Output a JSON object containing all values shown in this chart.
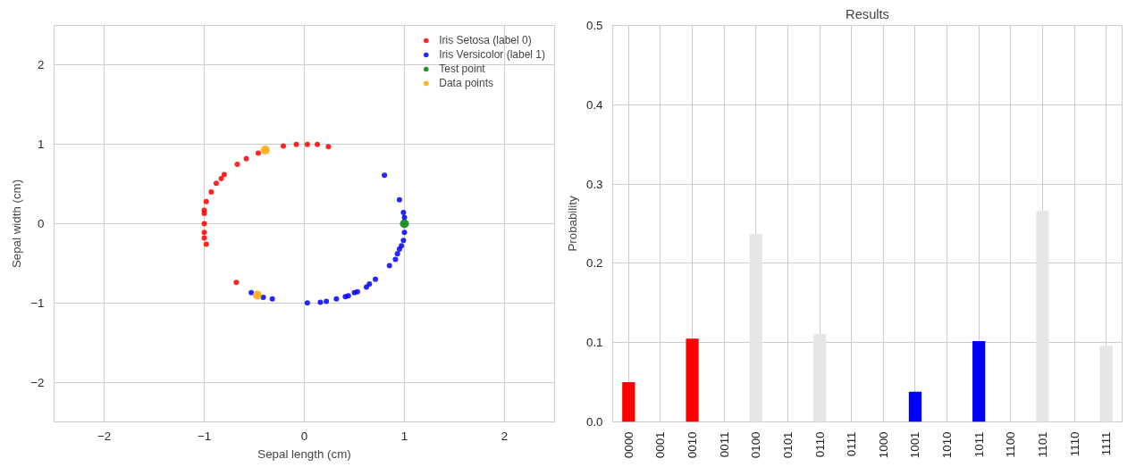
{
  "chart_data": [
    {
      "type": "scatter",
      "xlabel": "Sepal length (cm)",
      "ylabel": "Sepal width (cm)",
      "xlim": [
        -2.5,
        2.5
      ],
      "ylim": [
        -2.5,
        2.5
      ],
      "xticks": [
        -2,
        -1,
        0,
        1,
        2
      ],
      "yticks": [
        -2,
        -1,
        0,
        1,
        2
      ],
      "grid": true,
      "legend": "top right",
      "marker": "circle",
      "series": [
        {
          "name": "Iris Setosa (label 0)",
          "color": "#ff0000",
          "x": [
            -0.46,
            -0.58,
            -0.67,
            -0.8,
            -0.83,
            -0.88,
            -0.93,
            -0.98,
            -1.0,
            -1.0,
            -1.0,
            -1.0,
            -1.0,
            -0.98,
            -0.68,
            -0.21,
            -0.08,
            0.03,
            0.13,
            0.24
          ],
          "values": [
            0.89,
            0.82,
            0.75,
            0.62,
            0.57,
            0.51,
            0.4,
            0.28,
            0.17,
            0.13,
            0.0,
            -0.11,
            -0.18,
            -0.26,
            -0.74,
            0.98,
            1.0,
            1.0,
            1.0,
            0.97
          ]
        },
        {
          "name": "Iris Versicolor (label 1)",
          "color": "#0000ff",
          "x": [
            -0.53,
            -0.41,
            -0.32,
            0.03,
            0.16,
            0.22,
            0.32,
            0.41,
            0.44,
            0.5,
            0.53,
            0.62,
            0.65,
            0.71,
            0.85,
            0.91,
            0.93,
            0.95,
            0.97,
            0.99,
            1.0,
            0.8,
            0.95,
            0.99,
            1.0
          ],
          "values": [
            -0.87,
            -0.93,
            -0.95,
            -1.0,
            -0.99,
            -0.98,
            -0.95,
            -0.92,
            -0.91,
            -0.87,
            -0.86,
            -0.8,
            -0.76,
            -0.7,
            -0.53,
            -0.45,
            -0.38,
            -0.32,
            -0.28,
            -0.21,
            -0.11,
            0.61,
            0.3,
            0.14,
            0.08
          ]
        },
        {
          "name": "Test point",
          "color": "#008000",
          "x": [
            1.0
          ],
          "values": [
            0.0
          ]
        },
        {
          "name": "Data points",
          "color": "#ffa500",
          "x": [
            -0.39,
            -0.47
          ],
          "values": [
            0.93,
            -0.9
          ]
        }
      ]
    },
    {
      "type": "bar",
      "title": "Results",
      "ylabel": "Probability",
      "ylim": [
        0,
        0.5
      ],
      "grid": true,
      "yticks": [
        {
          "value": 0,
          "label": "0.0"
        },
        {
          "value": 0.1,
          "label": "0.1"
        },
        {
          "value": 0.2,
          "label": "0.2"
        },
        {
          "value": 0.3,
          "label": "0.3"
        },
        {
          "value": 0.4,
          "label": "0.4"
        },
        {
          "value": 0.5,
          "label": "0.5"
        }
      ],
      "categories": [
        "0000",
        "0001",
        "0010",
        "0011",
        "0100",
        "0101",
        "0110",
        "0111",
        "1000",
        "1001",
        "1010",
        "1011",
        "1100",
        "1101",
        "1110",
        "1111"
      ],
      "values": [
        0.05,
        0,
        0.105,
        0,
        0.237,
        0,
        0.111,
        0,
        0,
        0.038,
        0,
        0.102,
        0,
        0.266,
        0,
        0.096
      ],
      "colors": [
        "#ff0000",
        "#e6e6e6",
        "#ff0000",
        "#e6e6e6",
        "#e6e6e6",
        "#e6e6e6",
        "#e6e6e6",
        "#e6e6e6",
        "#e6e6e6",
        "#0000ff",
        "#e6e6e6",
        "#0000ff",
        "#e6e6e6",
        "#e6e6e6",
        "#e6e6e6",
        "#e6e6e6"
      ]
    }
  ]
}
